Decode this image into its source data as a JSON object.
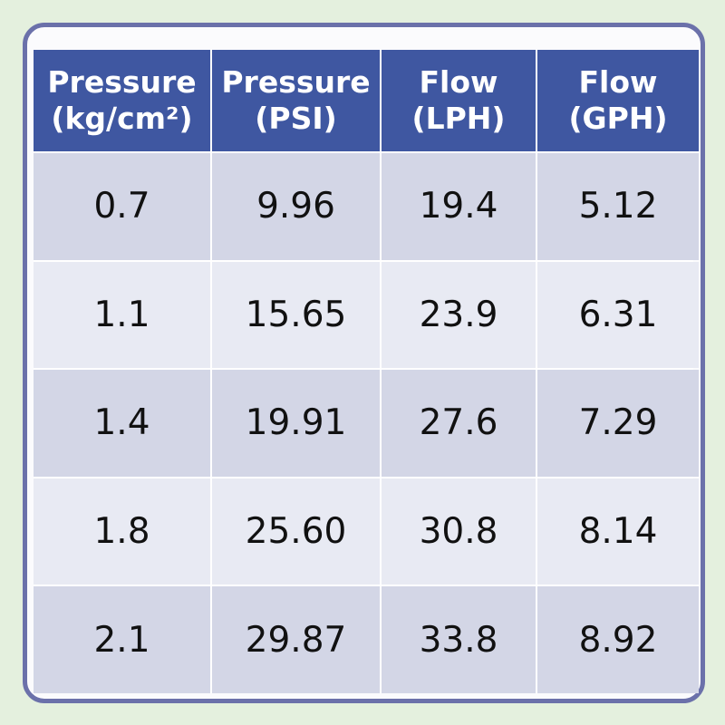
{
  "table": {
    "header": [
      [
        "Pressure",
        "(kg/cm²)"
      ],
      [
        "Pressure",
        "(PSI)"
      ],
      [
        "Flow",
        "(LPH)"
      ],
      [
        "Flow",
        "(GPH)"
      ]
    ],
    "rows": [
      [
        "0.7",
        "9.96",
        "19.4",
        "5.12"
      ],
      [
        "1.1",
        "15.65",
        "23.9",
        "6.31"
      ],
      [
        "1.4",
        "19.91",
        "27.6",
        "7.29"
      ],
      [
        "1.8",
        "25.60",
        "30.8",
        "8.14"
      ],
      [
        "2.1",
        "29.87",
        "33.8",
        "8.92"
      ]
    ]
  }
}
